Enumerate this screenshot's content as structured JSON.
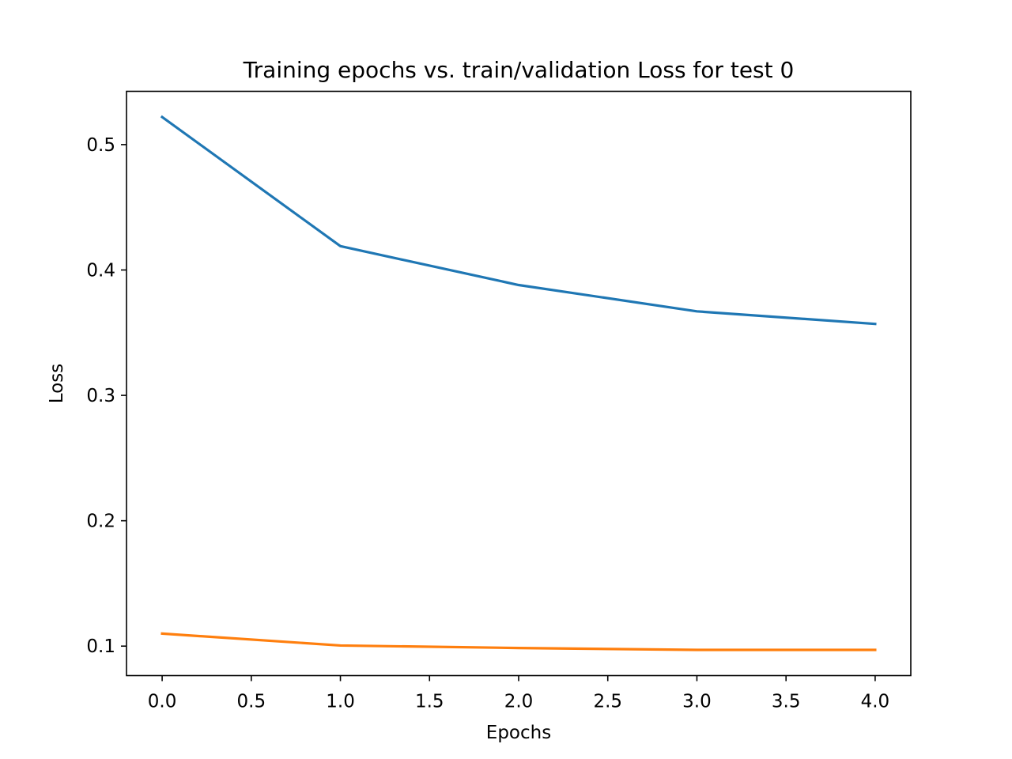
{
  "chart_data": {
    "type": "line",
    "title": "Training epochs vs. train/validation Loss for test 0",
    "xlabel": "Epochs",
    "ylabel": "Loss",
    "xlim": [
      -0.2,
      4.2
    ],
    "ylim": [
      0.0765,
      0.5425
    ],
    "grid": false,
    "x": [
      0,
      1,
      2,
      3,
      4
    ],
    "xticks": [
      "0.0",
      "0.5",
      "1.0",
      "1.5",
      "2.0",
      "2.5",
      "3.0",
      "3.5",
      "4.0"
    ],
    "yticks": [
      "0.1",
      "0.2",
      "0.3",
      "0.4",
      "0.5"
    ],
    "series": [
      {
        "color": "#1f77b4",
        "values": [
          0.522,
          0.419,
          0.388,
          0.367,
          0.357
        ]
      },
      {
        "color": "#ff7f0e",
        "values": [
          0.11,
          0.1005,
          0.0985,
          0.097,
          0.097
        ]
      }
    ]
  }
}
